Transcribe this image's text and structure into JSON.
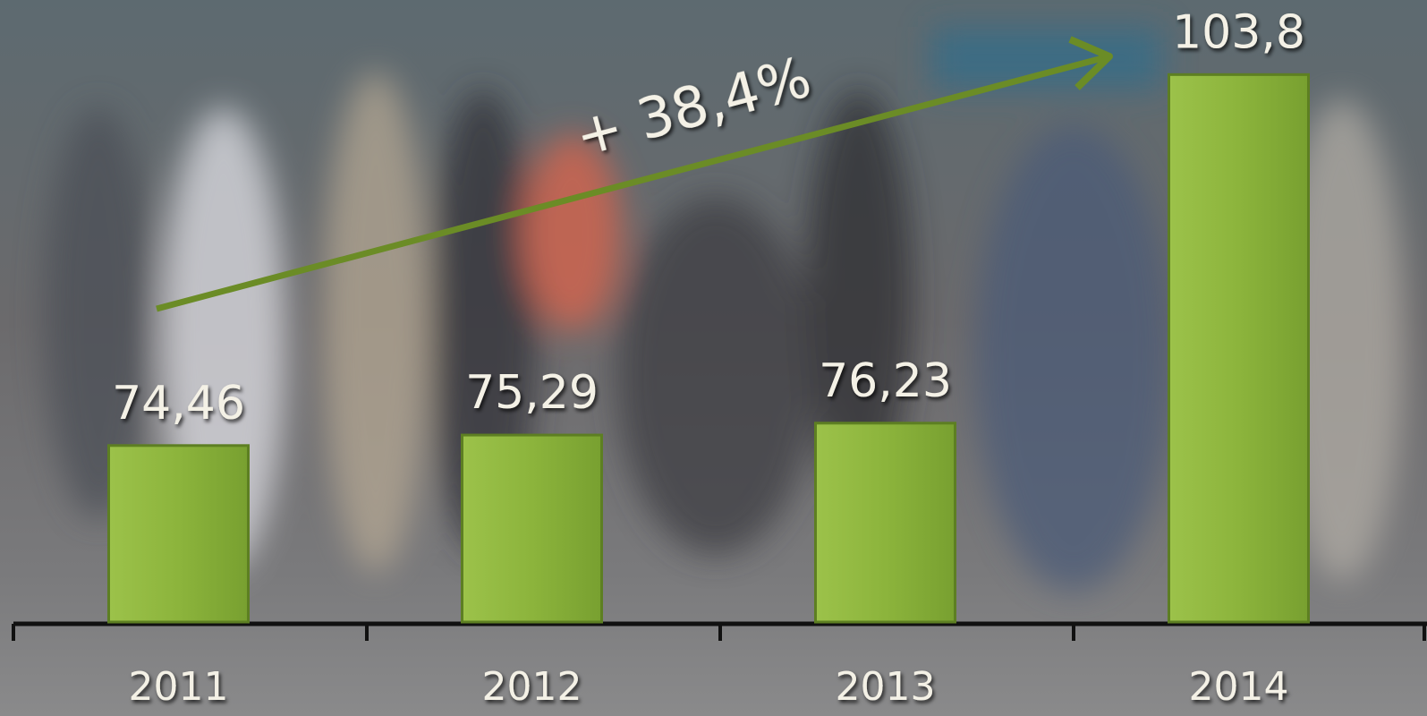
{
  "chart_data": {
    "type": "bar",
    "categories": [
      "2011",
      "2012",
      "2013",
      "2014"
    ],
    "values": [
      74.46,
      75.29,
      76.23,
      103.8
    ],
    "value_labels": [
      "74,46",
      "75,29",
      "76,23",
      "103,8"
    ],
    "color": "#8cb43c",
    "ylim": [
      60.5,
      109.7
    ],
    "annotation": "+ 38,4%"
  }
}
